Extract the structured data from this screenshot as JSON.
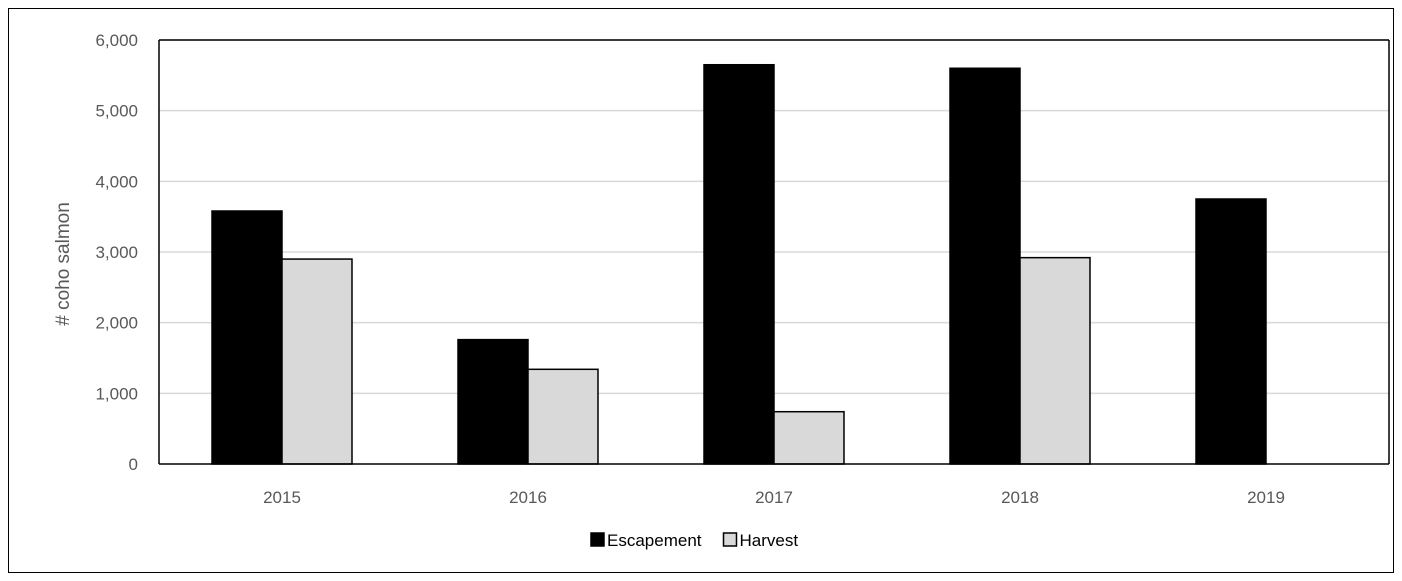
{
  "chart_data": {
    "type": "bar",
    "title": "",
    "xlabel": "",
    "ylabel": "# coho salmon",
    "categories": [
      "2015",
      "2016",
      "2017",
      "2018",
      "2019"
    ],
    "ylim": [
      0,
      6000
    ],
    "yticks": [
      0,
      1000,
      2000,
      3000,
      4000,
      5000,
      6000
    ],
    "ytick_labels": [
      "0",
      "1,000",
      "2,000",
      "3,000",
      "4,000",
      "5,000",
      "6,000"
    ],
    "grid": true,
    "legend_position": "bottom-center",
    "series": [
      {
        "name": "Escapement",
        "color": "#000000",
        "values": [
          3580,
          1760,
          5650,
          5600,
          3750
        ]
      },
      {
        "name": "Harvest",
        "color": "#d9d9d9",
        "values": [
          2900,
          1340,
          740,
          2920,
          null
        ]
      }
    ]
  }
}
